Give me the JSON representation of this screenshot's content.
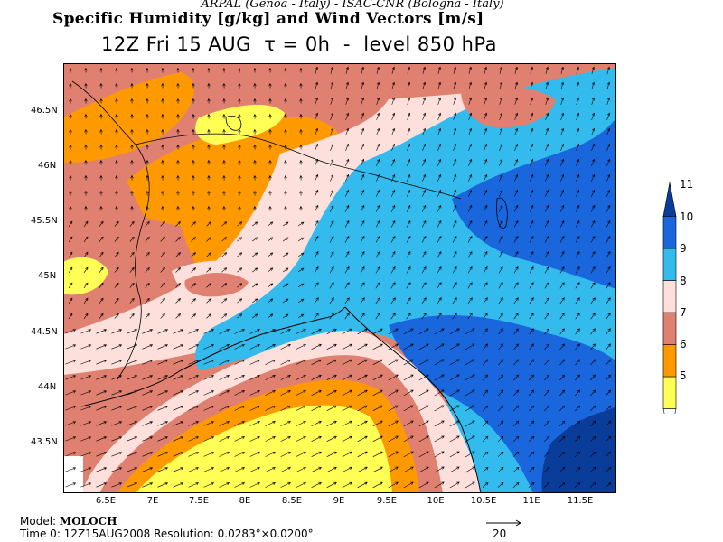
{
  "header": {
    "credit": "ARPAL (Genoa - Italy)  -  ISAC-CNR (Bologna - Italy)",
    "title": "Specific Humidity [g/kg] and Wind Vectors [m/s]",
    "subtitle": "12Z Fri 15 AUG  τ = 0h  -  level 850 hPa"
  },
  "axes": {
    "lat_labels": [
      "46.5N",
      "46N",
      "45.5N",
      "45N",
      "44.5N",
      "44N",
      "43.5N"
    ],
    "lon_labels": [
      "6.5E",
      "7E",
      "7.5E",
      "8E",
      "8.5E",
      "9E",
      "9.5E",
      "10E",
      "10.5E",
      "11E",
      "11.5E"
    ]
  },
  "colorbar": {
    "levels": [
      "5",
      "6",
      "7",
      "8",
      "9",
      "10",
      "11"
    ],
    "colors": [
      "#ffffff",
      "#ffff55",
      "#ff9900",
      "#e08070",
      "#fde0dc",
      "#33bbee",
      "#1a66dd",
      "#0a3d99"
    ]
  },
  "footer": {
    "model_label": "Model:",
    "model_name": "MOLOCH",
    "time_info": "Time 0: 12Z15AUG2008    Resolution: 0.0283°×0.0200°",
    "ref_vector_label": "20"
  }
}
